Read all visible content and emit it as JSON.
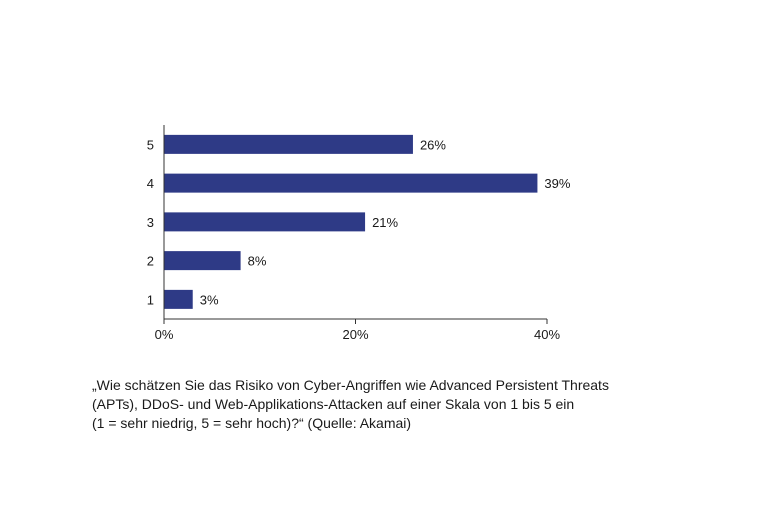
{
  "chart_data": {
    "type": "bar",
    "orientation": "horizontal",
    "categories": [
      "5",
      "4",
      "3",
      "2",
      "1"
    ],
    "values": [
      26,
      39,
      21,
      8,
      3
    ],
    "data_labels": [
      "26%",
      "39%",
      "21%",
      "8%",
      "3%"
    ],
    "xlim": [
      0,
      40
    ],
    "x_ticks": [
      0,
      20,
      40
    ],
    "x_tick_labels": [
      "0%",
      "20%",
      "40%"
    ],
    "title": "",
    "xlabel": "",
    "ylabel": "",
    "grid": false,
    "bar_color": "#2e3a86"
  },
  "caption": {
    "lines": [
      "„Wie schätzen Sie das Risiko von Cyber-Angriffen wie Advanced Persistent Threats",
      "(APTs), DDoS- und Web-Applikations-Attacken auf einer Skala von 1 bis 5 ein",
      "(1 = sehr niedrig, 5 = sehr hoch)?“ (Quelle: Akamai)"
    ]
  }
}
